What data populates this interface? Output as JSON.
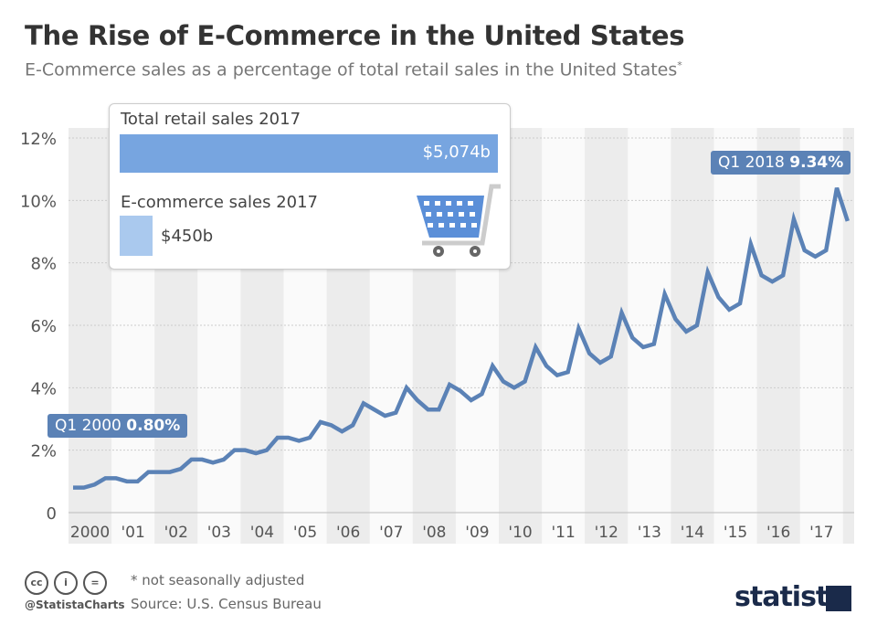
{
  "title": "The Rise of E-Commerce in the United States",
  "subtitle": "E-Commerce sales as a percentage of total retail sales in the United States",
  "subtitle_mark": "*",
  "infobox": {
    "total_label": "Total retail sales 2017",
    "total_value": "$5,074b",
    "total_amount": 5074,
    "ecom_label": "E-commerce sales 2017",
    "ecom_value": "$450b",
    "ecom_amount": 450,
    "icon": "shopping-cart-icon"
  },
  "callouts": {
    "start_period": "Q1 2000",
    "start_value": "0.80%",
    "end_period": "Q1 2018",
    "end_value": "9.34%"
  },
  "footer": {
    "note": "* not seasonally adjusted",
    "source": "Source: U.S. Census Bureau",
    "handle": "@StatistaCharts",
    "license_icons": [
      "cc-icon",
      "attribution-icon",
      "no-derivatives-icon"
    ],
    "license_glyphs": [
      "cc",
      "i",
      "="
    ],
    "logo": "statista"
  },
  "colors": {
    "line": "#5b82b6",
    "band": "#ececec",
    "total_bar": "#77a5e0",
    "ecom_bar": "#aac9ee"
  },
  "chart_data": {
    "type": "line",
    "title": "The Rise of E-Commerce in the United States",
    "xlabel": "",
    "ylabel": "",
    "ylim": [
      0,
      12
    ],
    "yticks": [
      0,
      2,
      4,
      6,
      8,
      10,
      12
    ],
    "ytick_labels": [
      "0",
      "2%",
      "4%",
      "6%",
      "8%",
      "10%",
      "12%"
    ],
    "xtick_labels": [
      "2000",
      "'01",
      "'02",
      "'03",
      "'04",
      "'05",
      "'06",
      "'07",
      "'08",
      "'09",
      "'10",
      "'11",
      "'12",
      "'13",
      "'14",
      "'15",
      "'16",
      "'17"
    ],
    "x_start": "Q1 2000",
    "x_end": "Q1 2018",
    "frequency": "quarterly",
    "grid": true,
    "values": [
      0.8,
      0.8,
      0.9,
      1.1,
      1.1,
      1.0,
      1.0,
      1.3,
      1.3,
      1.3,
      1.4,
      1.7,
      1.7,
      1.6,
      1.7,
      2.0,
      2.0,
      1.9,
      2.0,
      2.4,
      2.4,
      2.3,
      2.4,
      2.9,
      2.8,
      2.6,
      2.8,
      3.5,
      3.3,
      3.1,
      3.2,
      4.0,
      3.6,
      3.3,
      3.3,
      4.1,
      3.9,
      3.6,
      3.8,
      4.7,
      4.2,
      4.0,
      4.2,
      5.3,
      4.7,
      4.4,
      4.5,
      5.9,
      5.1,
      4.8,
      5.0,
      6.4,
      5.6,
      5.3,
      5.4,
      7.0,
      6.2,
      5.8,
      6.0,
      7.7,
      6.9,
      6.5,
      6.7,
      8.6,
      7.6,
      7.4,
      7.6,
      9.4,
      8.4,
      8.2,
      8.4,
      10.4,
      9.34
    ]
  }
}
